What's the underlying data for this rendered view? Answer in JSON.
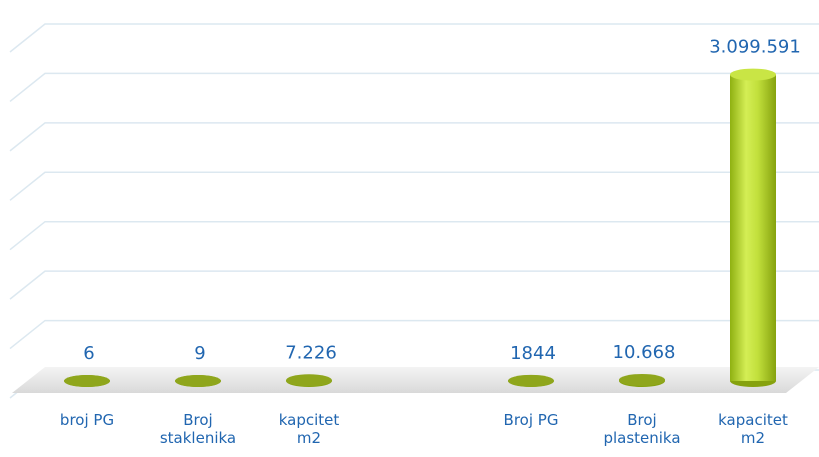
{
  "chart_data": {
    "type": "bar",
    "categories": [
      "broj PG",
      "Broj staklenika",
      "kapcitet m2",
      null,
      "Broj PG",
      "Broj plastenika",
      "kapacitet m2"
    ],
    "values": [
      6,
      9,
      7226,
      null,
      1844,
      10668,
      3099591
    ],
    "value_labels": [
      "6",
      "9",
      "7.226",
      null,
      "1844",
      "10.668",
      "3.099.591"
    ],
    "color": "#b5d430",
    "ylim": [
      0,
      3500000
    ],
    "yticks": [
      0,
      500000,
      1000000,
      1500000,
      2000000,
      2500000,
      3000000,
      3500000
    ],
    "grid": true
  }
}
